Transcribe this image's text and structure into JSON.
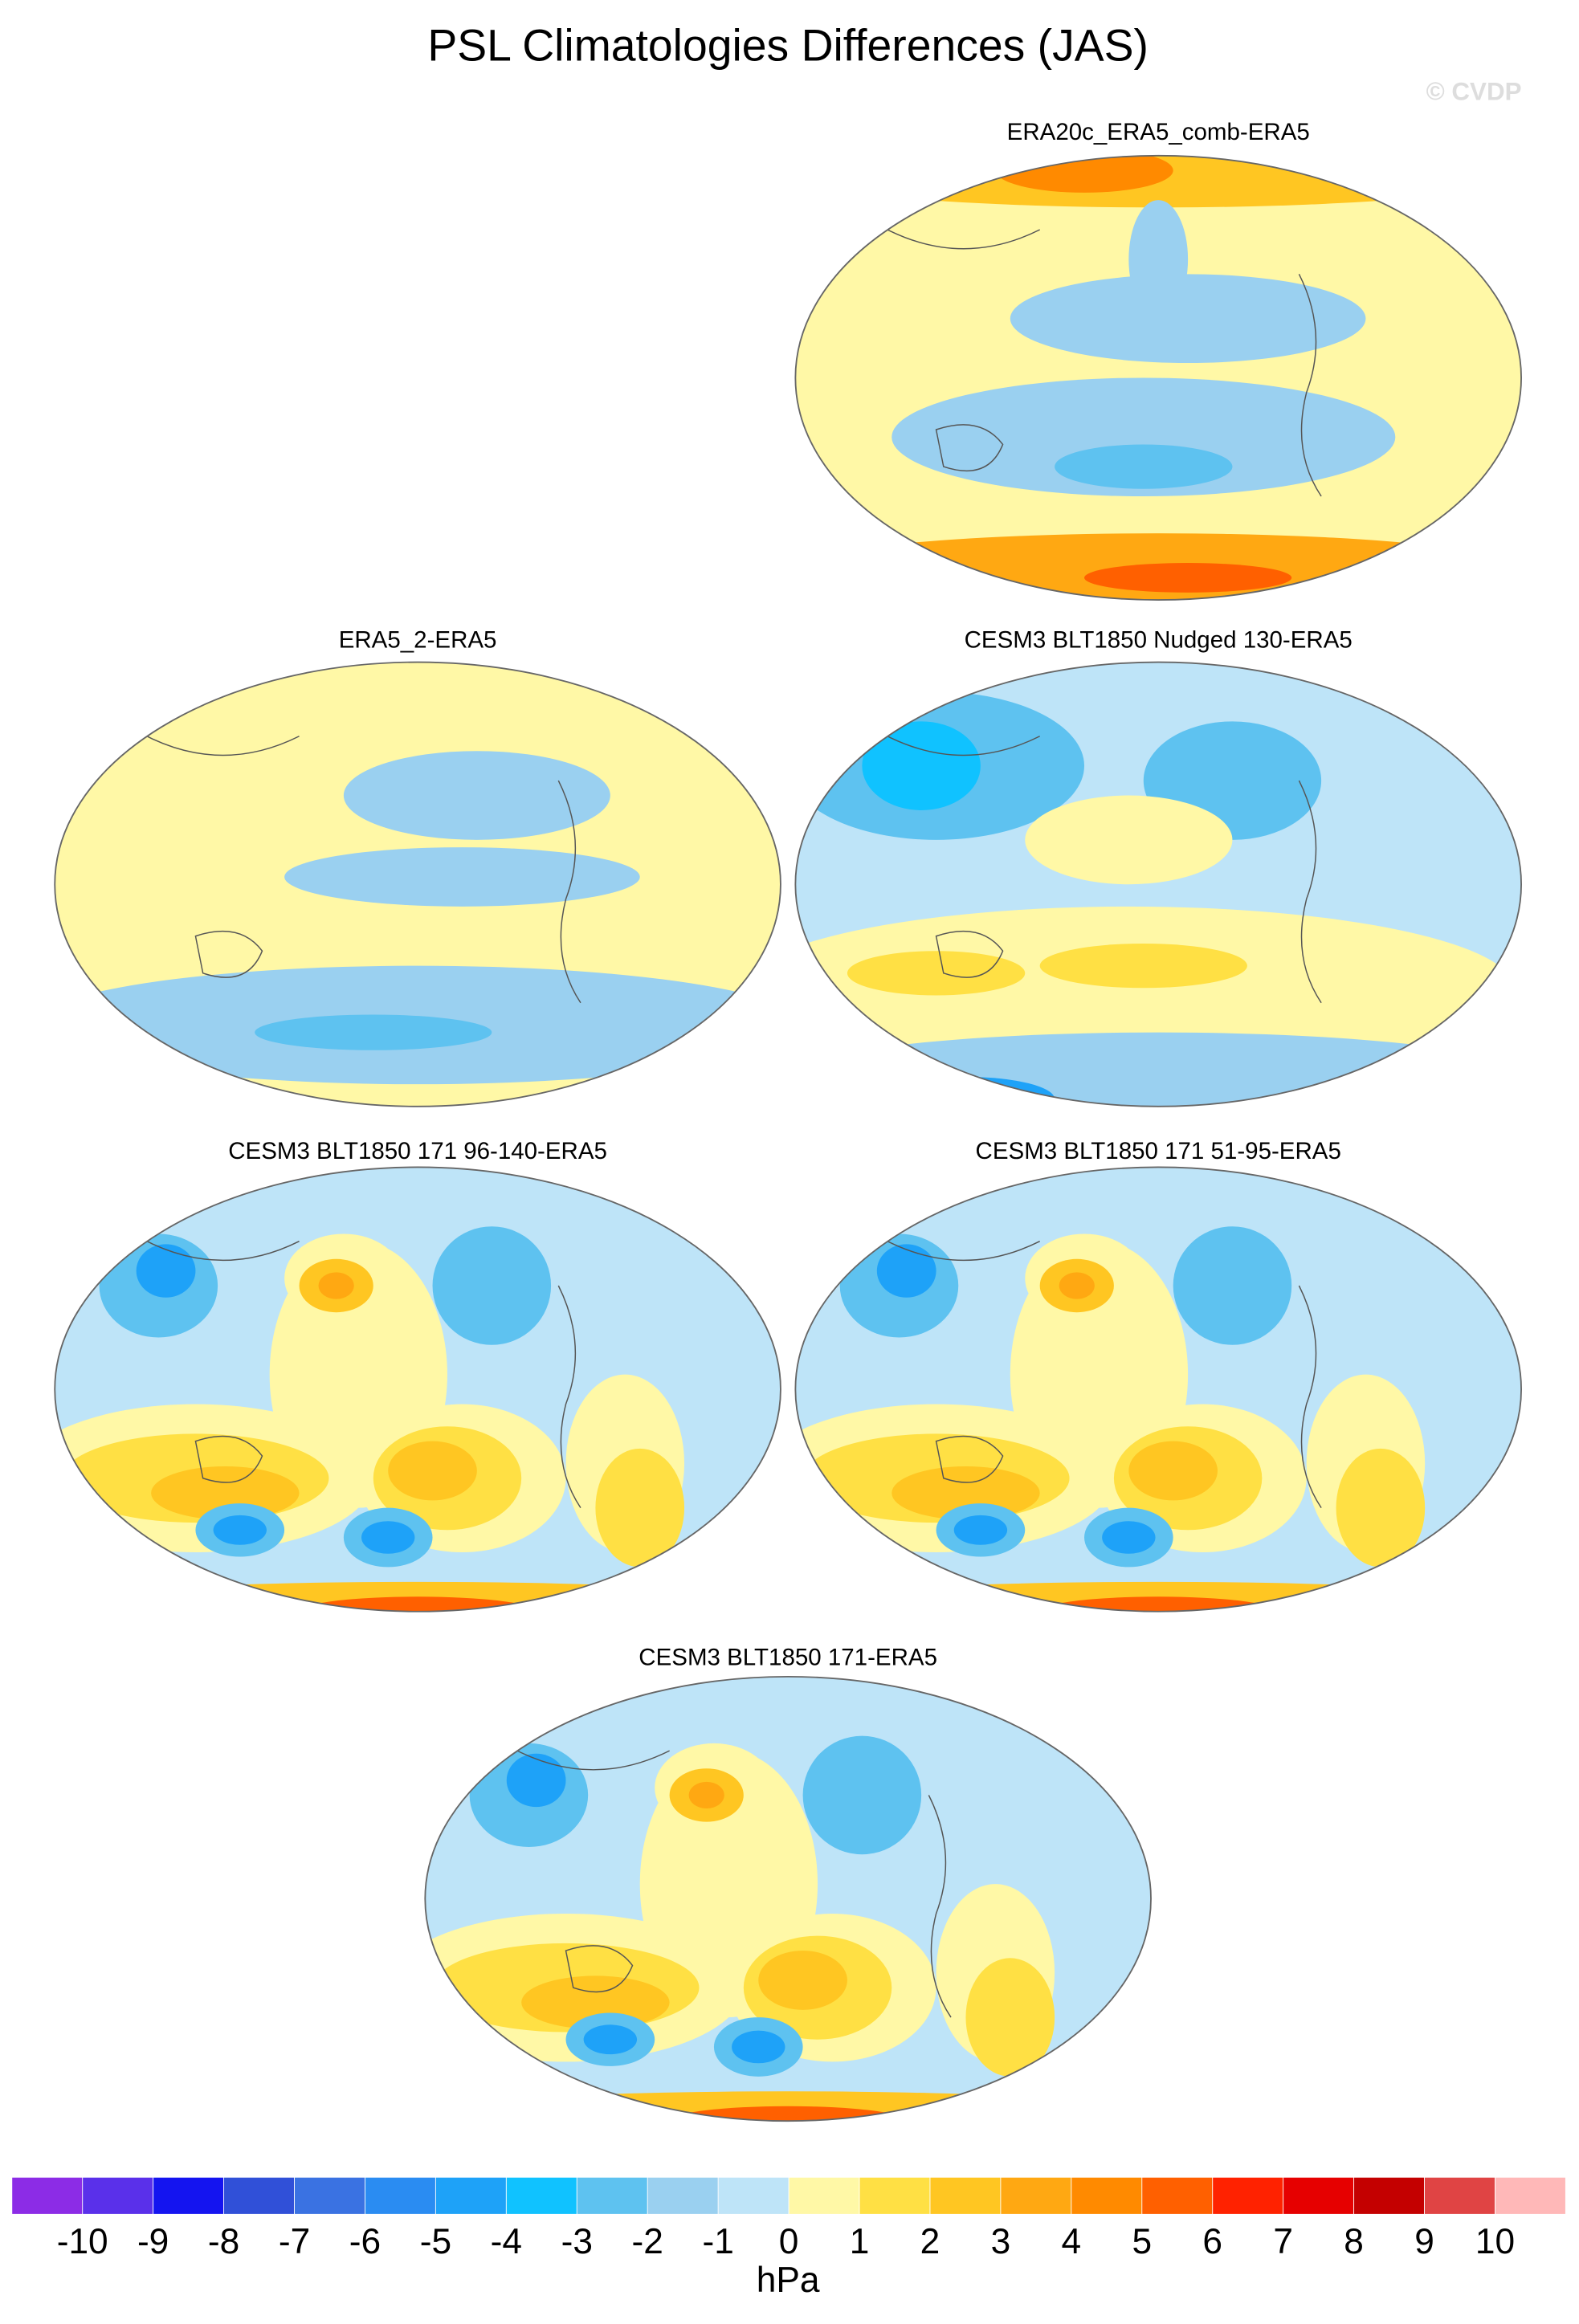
{
  "title": "PSL Climatologies Differences (JAS)",
  "watermark": "© CVDP",
  "panels": [
    {
      "title": "ERA20c_ERA5_comb-ERA5"
    },
    {
      "title": "ERA5_2-ERA5"
    },
    {
      "title": "CESM3 BLT1850 Nudged 130-ERA5"
    },
    {
      "title": "CESM3 BLT1850 171 96-140-ERA5"
    },
    {
      "title": "CESM3 BLT1850 171 51-95-ERA5"
    },
    {
      "title": "CESM3 BLT1850 171-ERA5"
    }
  ],
  "colorbar": {
    "colors": [
      "#8c2ce6",
      "#5a30ea",
      "#1414f0",
      "#3050d8",
      "#3a72e2",
      "#2a8cf2",
      "#1ea2f8",
      "#10c2ff",
      "#5ec2f0",
      "#9ad0f0",
      "#bee4f8",
      "#fff8a6",
      "#ffe044",
      "#ffc622",
      "#ffa812",
      "#ff8a00",
      "#ff6000",
      "#ff2200",
      "#e60000",
      "#c40000",
      "#e04444",
      "#ffb8b8"
    ],
    "ticks": [
      -10,
      -9,
      -8,
      -7,
      -6,
      -5,
      -4,
      -3,
      -2,
      -1,
      0,
      1,
      2,
      3,
      4,
      5,
      6,
      7,
      8,
      9,
      10
    ],
    "label": "hPa"
  }
}
